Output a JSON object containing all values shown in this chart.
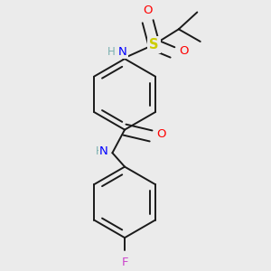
{
  "bg_color": "#ebebeb",
  "bond_color": "#1a1a1a",
  "bond_width": 1.4,
  "atom_colors": {
    "N": "#0000ff",
    "O": "#ff0000",
    "S": "#cccc00",
    "F": "#cc44cc",
    "C": "#1a1a1a",
    "H": "#7ab0b0"
  },
  "font_size": 9.5
}
